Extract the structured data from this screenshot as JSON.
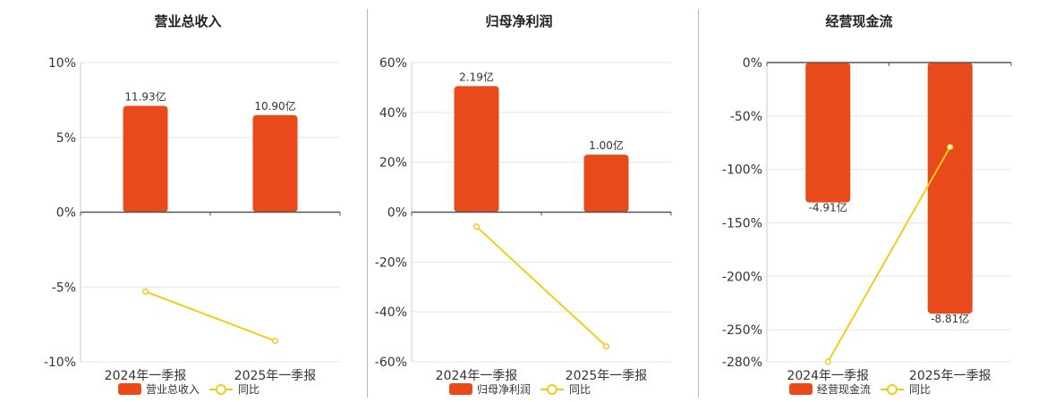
{
  "colors": {
    "bar": "#e84a1b",
    "line": "#f2cc1b",
    "axis": "#555555",
    "grid": "#e5e5ec",
    "text": "#333333",
    "divider": "#b8b8b8"
  },
  "chart_data": [
    {
      "type": "bar",
      "title": "营业总收入",
      "categories": [
        "2024年一季报",
        "2025年一季报"
      ],
      "series": [
        {
          "name": "营业总收入",
          "type": "bar",
          "values": [
            11.93,
            10.9
          ],
          "labels": [
            "11.93亿",
            "10.90亿"
          ]
        },
        {
          "name": "同比",
          "type": "line",
          "values": [
            -5.3,
            -8.6
          ]
        }
      ],
      "ylim": [
        -10,
        10
      ],
      "yticks": [
        10,
        5,
        0,
        -5,
        -10
      ],
      "ytick_labels": [
        "10%",
        "5%",
        "0%",
        "-5%",
        "-10%"
      ],
      "bar_ylim": [
        0,
        16.8
      ],
      "legend": "bottom",
      "grid": true
    },
    {
      "type": "bar",
      "title": "归母净利润",
      "categories": [
        "2024年一季报",
        "2025年一季报"
      ],
      "series": [
        {
          "name": "归母净利润",
          "type": "bar",
          "values": [
            2.19,
            1.0
          ],
          "labels": [
            "2.19亿",
            "1.00亿"
          ]
        },
        {
          "name": "同比",
          "type": "line",
          "values": [
            -5.8,
            -53.8
          ]
        }
      ],
      "ylim": [
        -60,
        60
      ],
      "yticks": [
        60,
        40,
        20,
        0,
        -20,
        -40,
        -60
      ],
      "ytick_labels": [
        "60%",
        "40%",
        "20%",
        "0%",
        "-20%",
        "-40%",
        "-60%"
      ],
      "bar_ylim": [
        0,
        2.6
      ],
      "legend": "bottom",
      "grid": true
    },
    {
      "type": "bar",
      "title": "经营现金流",
      "categories": [
        "2024年一季报",
        "2025年一季报"
      ],
      "series": [
        {
          "name": "经营现金流",
          "type": "bar",
          "values": [
            -4.91,
            -8.81
          ],
          "labels": [
            "-4.91亿",
            "-8.81亿"
          ]
        },
        {
          "name": "同比",
          "type": "line",
          "values": [
            -280,
            -79
          ]
        }
      ],
      "ylim": [
        -280,
        0
      ],
      "yticks": [
        0,
        -50,
        -100,
        -150,
        -200,
        -250,
        -280
      ],
      "ytick_labels": [
        "0%",
        "-50%",
        "-100%",
        "-150%",
        "-200%",
        "-250%",
        "-280%"
      ],
      "bar_ylim": [
        -10.5,
        0
      ],
      "legend": "bottom",
      "grid": true
    }
  ]
}
